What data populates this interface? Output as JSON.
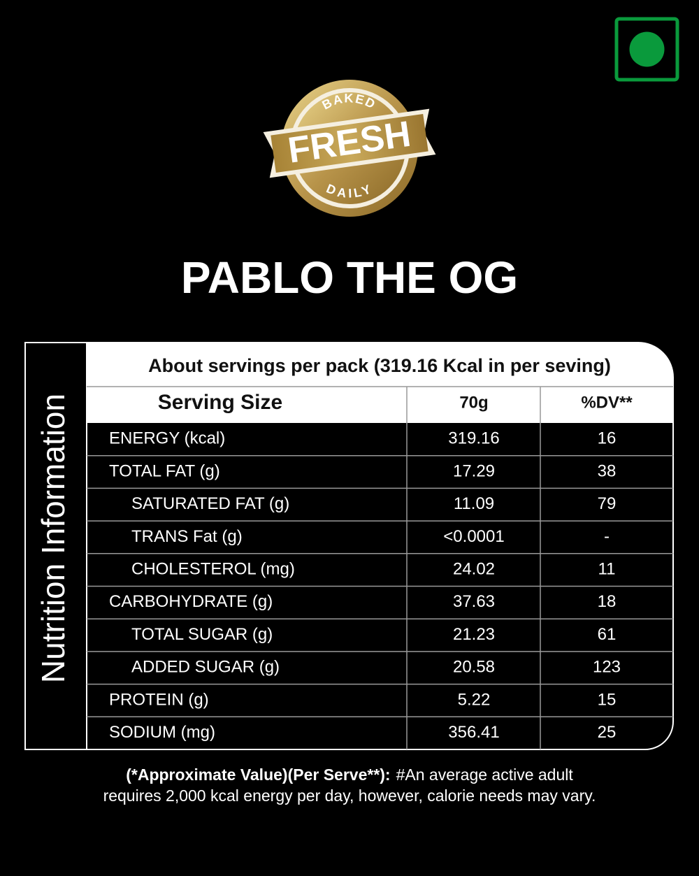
{
  "badge": {
    "top": "BAKED",
    "main": "FRESH",
    "bottom": "DAILY"
  },
  "header": {
    "title": "PABLO THE OG"
  },
  "table": {
    "side_label": "Nutrition Information",
    "servings_note": "About  servings per pack (319.16 Kcal in per seving)",
    "columns": [
      "Serving Size",
      "70g",
      "%DV**"
    ],
    "rows": [
      [
        "ENERGY (kcal)",
        "319.16",
        "16"
      ],
      [
        "TOTAL FAT (g)",
        "17.29",
        "38"
      ],
      [
        "SATURATED FAT (g)",
        "11.09",
        "79"
      ],
      [
        "TRANS Fat (g)",
        "<0.0001",
        "-"
      ],
      [
        "CHOLESTEROL (mg)",
        "24.02",
        "11"
      ],
      [
        "CARBOHYDRATE (g)",
        "37.63",
        "18"
      ],
      [
        "TOTAL SUGAR (g)",
        "21.23",
        "61"
      ],
      [
        "ADDED SUGAR (g)",
        "20.58",
        "123"
      ],
      [
        "PROTEIN (g)",
        "5.22",
        "15"
      ],
      [
        "SODIUM (mg)",
        "356.41",
        "25"
      ]
    ]
  },
  "footnote": {
    "bold": "(*Approximate Value)(Per Serve**):",
    "line1": "#An average active adult",
    "line2": "requires 2,000 kcal energy per day, however, calorie needs may vary."
  }
}
